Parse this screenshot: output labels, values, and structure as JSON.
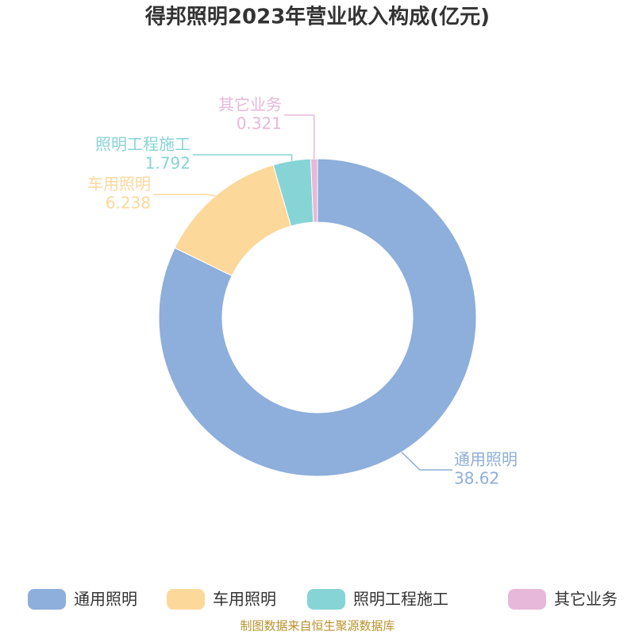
{
  "chart_data": {
    "type": "donut",
    "title": "得邦照明2023年营业收入构成(亿元)",
    "categories": [
      "通用照明",
      "车用照明",
      "照明工程施工",
      "其它业务"
    ],
    "values": [
      38.62,
      6.238,
      1.792,
      0.321
    ],
    "colors": [
      "#8eaedb",
      "#fdd89b",
      "#87d4d6",
      "#e7b8d9"
    ],
    "legend": "bottom",
    "source": "制图数据来自恒生聚源数据库"
  }
}
